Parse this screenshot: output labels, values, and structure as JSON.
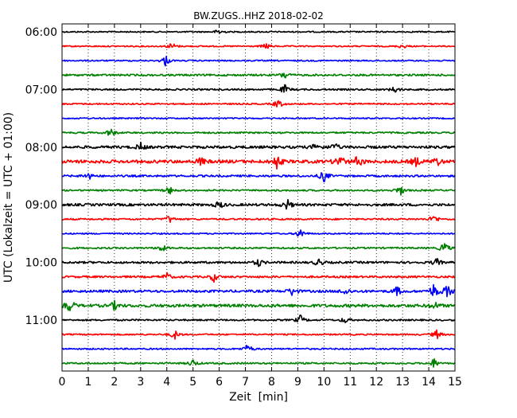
{
  "chart_data": {
    "type": "line",
    "title": "BW.ZUGS..HHZ 2018-02-02",
    "xlabel": "Zeit  [min]",
    "ylabel": "UTC (Lokalzeit = UTC + 01:00)",
    "xlim": [
      0,
      15
    ],
    "xticks": [
      "0",
      "1",
      "2",
      "3",
      "4",
      "5",
      "6",
      "7",
      "8",
      "9",
      "10",
      "11",
      "12",
      "13",
      "14",
      "15"
    ],
    "ytick_labels": [
      {
        "label": "06:00",
        "row": 0
      },
      {
        "label": "07:00",
        "row": 4
      },
      {
        "label": "08:00",
        "row": 8
      },
      {
        "label": "09:00",
        "row": 12
      },
      {
        "label": "10:00",
        "row": 16
      },
      {
        "label": "11:00",
        "row": 20
      }
    ],
    "trace_colors": [
      "#000000",
      "#ff0000",
      "#0000ff",
      "#008000"
    ],
    "trace_interval_min": 15,
    "grid": "vertical dotted",
    "traces": [
      {
        "start": "06:00",
        "color": "#000000",
        "noise": 0.8,
        "events": [
          [
            6.0,
            4
          ]
        ]
      },
      {
        "start": "06:15",
        "color": "#ff0000",
        "noise": 0.8,
        "events": [
          [
            4.2,
            5
          ],
          [
            7.8,
            4
          ],
          [
            13.0,
            3
          ]
        ]
      },
      {
        "start": "06:30",
        "color": "#0000ff",
        "noise": 0.8,
        "events": [
          [
            3.95,
            7
          ]
        ]
      },
      {
        "start": "06:45",
        "color": "#008000",
        "noise": 1.2,
        "events": [
          [
            8.5,
            5
          ]
        ]
      },
      {
        "start": "07:00",
        "color": "#000000",
        "noise": 1.0,
        "events": [
          [
            8.5,
            6
          ],
          [
            12.7,
            4
          ]
        ]
      },
      {
        "start": "07:15",
        "color": "#ff0000",
        "noise": 0.9,
        "events": [
          [
            8.25,
            6
          ]
        ]
      },
      {
        "start": "07:30",
        "color": "#0000ff",
        "noise": 0.8,
        "events": []
      },
      {
        "start": "07:45",
        "color": "#008000",
        "noise": 1.0,
        "events": [
          [
            1.85,
            6
          ]
        ]
      },
      {
        "start": "08:00",
        "color": "#000000",
        "noise": 1.6,
        "events": [
          [
            3.0,
            5
          ],
          [
            9.7,
            5
          ],
          [
            10.4,
            5
          ]
        ]
      },
      {
        "start": "08:15",
        "color": "#ff0000",
        "noise": 2.0,
        "events": [
          [
            5.3,
            5
          ],
          [
            8.2,
            9
          ],
          [
            10.6,
            9
          ],
          [
            11.3,
            8
          ],
          [
            13.5,
            6
          ],
          [
            14.3,
            6
          ]
        ]
      },
      {
        "start": "08:30",
        "color": "#0000ff",
        "noise": 1.2,
        "events": [
          [
            1.0,
            5
          ],
          [
            10.0,
            8
          ]
        ]
      },
      {
        "start": "08:45",
        "color": "#008000",
        "noise": 1.0,
        "events": [
          [
            4.1,
            5
          ],
          [
            12.9,
            7
          ]
        ]
      },
      {
        "start": "09:00",
        "color": "#000000",
        "noise": 1.5,
        "events": [
          [
            6.0,
            5
          ],
          [
            8.6,
            7
          ]
        ]
      },
      {
        "start": "09:15",
        "color": "#ff0000",
        "noise": 1.0,
        "events": [
          [
            4.1,
            5
          ],
          [
            14.2,
            6
          ]
        ]
      },
      {
        "start": "09:30",
        "color": "#0000ff",
        "noise": 0.8,
        "events": [
          [
            9.1,
            7
          ]
        ]
      },
      {
        "start": "09:45",
        "color": "#008000",
        "noise": 1.0,
        "events": [
          [
            3.8,
            5
          ],
          [
            14.6,
            8
          ]
        ]
      },
      {
        "start": "10:00",
        "color": "#000000",
        "noise": 1.3,
        "events": [
          [
            7.5,
            5
          ],
          [
            9.8,
            5
          ],
          [
            14.3,
            5
          ]
        ]
      },
      {
        "start": "10:15",
        "color": "#ff0000",
        "noise": 1.2,
        "events": [
          [
            4.0,
            5
          ],
          [
            5.8,
            6
          ]
        ]
      },
      {
        "start": "10:30",
        "color": "#0000ff",
        "noise": 1.5,
        "events": [
          [
            8.8,
            6
          ],
          [
            10.8,
            5
          ],
          [
            12.8,
            6
          ],
          [
            14.2,
            10
          ],
          [
            14.7,
            8
          ]
        ]
      },
      {
        "start": "10:45",
        "color": "#008000",
        "noise": 1.8,
        "events": [
          [
            0.3,
            8
          ],
          [
            2.0,
            5
          ],
          [
            14.2,
            5
          ]
        ]
      },
      {
        "start": "11:00",
        "color": "#000000",
        "noise": 1.0,
        "events": [
          [
            9.1,
            6
          ],
          [
            10.8,
            4
          ]
        ]
      },
      {
        "start": "11:15",
        "color": "#ff0000",
        "noise": 0.9,
        "events": [
          [
            4.3,
            6
          ],
          [
            14.3,
            6
          ]
        ]
      },
      {
        "start": "11:30",
        "color": "#0000ff",
        "noise": 0.9,
        "events": [
          [
            7.1,
            6
          ]
        ]
      },
      {
        "start": "11:45",
        "color": "#008000",
        "noise": 1.0,
        "events": [
          [
            5.0,
            5
          ],
          [
            14.2,
            6
          ]
        ]
      }
    ]
  }
}
